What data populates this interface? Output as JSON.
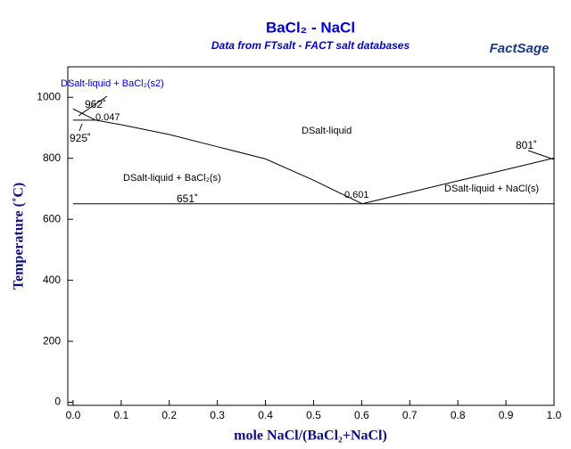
{
  "chart_data": {
    "type": "line",
    "title": "BaCl₂ - NaCl",
    "subtitle": "Data from FTsalt - FACT salt databases",
    "logo": "FactSage",
    "x_label": "mole NaCl/(BaCl₂+NaCl)",
    "y_label": "Temperature (˚C)",
    "xlim": [
      -0.011,
      1.0
    ],
    "ylim": [
      -10,
      1100
    ],
    "xticks": [
      {
        "value": 0,
        "label": "0.0"
      },
      0.1,
      0.2,
      0.3,
      0.4,
      0.5,
      0.6,
      0.7,
      0.8,
      0.9,
      {
        "value": 1,
        "label": "1.0"
      }
    ],
    "yticks": [
      0,
      200,
      400,
      600,
      800,
      1000
    ],
    "series": [
      {
        "color": "#000000",
        "x": [
          0,
          0.047
        ],
        "values": [
          962,
          925
        ]
      },
      {
        "color": "#000000",
        "x": [
          0,
          0.047
        ],
        "values": [
          925,
          925
        ]
      },
      {
        "color": "#000000",
        "x": [
          0.047,
          0.1,
          0.2,
          0.3,
          0.4,
          0.5,
          0.601
        ],
        "values": [
          925,
          910,
          878,
          838,
          798,
          728,
          651
        ]
      },
      {
        "color": "#000000",
        "x": [
          0.601,
          0.7,
          0.8,
          0.9,
          1.0
        ],
        "values": [
          651,
          688,
          726,
          763,
          801
        ]
      },
      {
        "color": "#000000",
        "x": [
          0,
          1.0
        ],
        "values": [
          651,
          651
        ]
      }
    ],
    "annotations": [
      "DSalt-liquid + BaCl₂(s2)",
      "962˚",
      "0.047",
      "925˚",
      "DSalt-liquid",
      "801˚",
      "DSalt-liquid + BaCl₂(s)",
      "0.601",
      "DSalt-liquid + NaCl(s)",
      "651˚"
    ]
  }
}
